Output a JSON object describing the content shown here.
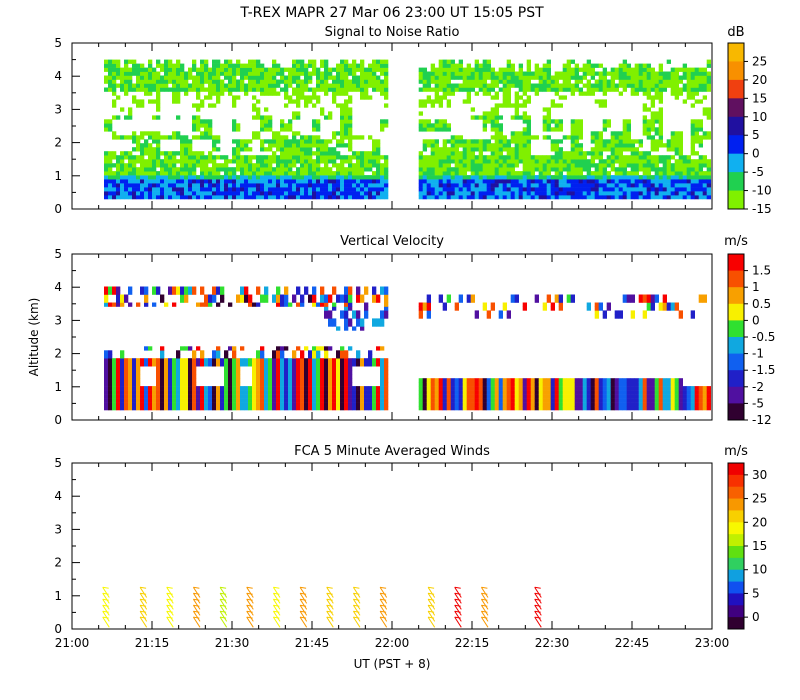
{
  "title_line": "T-REX   MAPR 27 Mar 06   23:00 UT   15:05   PST",
  "y_axis_label": "Altitude (km)",
  "x_axis_label": "UT  (PST + 8)",
  "chart_data": [
    {
      "type": "heatmap",
      "title": "Signal to Noise Ratio",
      "ylabel": "Altitude (km)",
      "ylim": [
        0,
        5
      ],
      "yticks": [
        "0",
        "1",
        "2",
        "3",
        "4",
        "5"
      ],
      "xlabel": "UT  (PST + 8)",
      "xticks": [
        "21:00",
        "21:15",
        "21:30",
        "21:45",
        "22:00",
        "22:15",
        "22:30",
        "22:45",
        "23:00"
      ],
      "colorbar": {
        "unit": "dB",
        "labels": [
          "25",
          "20",
          "15",
          "10",
          "5",
          "0",
          "-5",
          "-10",
          "-15"
        ],
        "colors": [
          "#f8b800",
          "#f89000",
          "#f04010",
          "#601060",
          "#2010a0",
          "#0020f0",
          "#10b0f0",
          "#20d050",
          "#80f000"
        ]
      },
      "segments": [
        {
          "x_start": "21:06",
          "x_end": "21:59"
        },
        {
          "x_start": "22:05",
          "x_end": "22:59"
        }
      ],
      "profile_summary": [
        {
          "alt_range_km": [
            0.3,
            0.8
          ],
          "typical_db": -2
        },
        {
          "alt_range_km": [
            0.8,
            2.0
          ],
          "typical_db": -10
        },
        {
          "alt_range_km": [
            2.0,
            3.5
          ],
          "typical_db": -12
        },
        {
          "alt_range_km": [
            3.5,
            4.3
          ],
          "typical_db": -13
        }
      ]
    },
    {
      "type": "heatmap",
      "title": "Vertical Velocity",
      "ylabel": "Altitude (km)",
      "ylim": [
        0,
        5
      ],
      "yticks": [
        "0",
        "1",
        "2",
        "3",
        "4",
        "5"
      ],
      "xlabel": "UT  (PST + 8)",
      "xticks": [
        "21:00",
        "21:15",
        "21:30",
        "21:45",
        "22:00",
        "22:15",
        "22:30",
        "22:45",
        "23:00"
      ],
      "colorbar": {
        "unit": "m/s",
        "labels": [
          "1.5",
          "1",
          "0.5",
          "0",
          "-0.5",
          "-1",
          "-1.5",
          "-2",
          "-5",
          "-12"
        ],
        "colors": [
          "#f80000",
          "#f85000",
          "#f8a000",
          "#f8f000",
          "#30e030",
          "#10a8e0",
          "#1060f0",
          "#2020c8",
          "#5010a0",
          "#300030"
        ]
      },
      "segments": [
        {
          "x_start": "21:06",
          "x_end": "21:59"
        },
        {
          "x_start": "22:05",
          "x_end": "22:59"
        }
      ]
    },
    {
      "type": "scatter",
      "title": "FCA 5 Minute Averaged Winds",
      "ylabel": "Altitude (km)",
      "ylim": [
        0,
        5
      ],
      "yticks": [
        "0",
        "1",
        "2",
        "3",
        "4",
        "5"
      ],
      "xlabel": "UT  (PST + 8)",
      "xticks": [
        "21:00",
        "21:15",
        "21:30",
        "21:45",
        "22:00",
        "22:15",
        "22:30",
        "22:45",
        "23:00"
      ],
      "colorbar": {
        "unit": "m/s",
        "labels": [
          "30",
          "25",
          "20",
          "15",
          "10",
          "5",
          "0"
        ],
        "colors": [
          "#f00000",
          "#f83000",
          "#f86000",
          "#f89800",
          "#f8d000",
          "#f8f800",
          "#c0f000",
          "#60e010",
          "#30d060",
          "#10a0e0",
          "#1050f0",
          "#2010c0",
          "#400080",
          "#300030"
        ]
      },
      "wind_profiles": [
        {
          "time": "21:07",
          "speed_ms": 18
        },
        {
          "time": "21:14",
          "speed_ms": 20
        },
        {
          "time": "21:19",
          "speed_ms": 19
        },
        {
          "time": "21:24",
          "speed_ms": 22
        },
        {
          "time": "21:29",
          "speed_ms": 17
        },
        {
          "time": "21:34",
          "speed_ms": 24
        },
        {
          "time": "21:39",
          "speed_ms": 19
        },
        {
          "time": "21:44",
          "speed_ms": 23
        },
        {
          "time": "21:49",
          "speed_ms": 21
        },
        {
          "time": "21:54",
          "speed_ms": 20
        },
        {
          "time": "21:59",
          "speed_ms": 22
        },
        {
          "time": "22:08",
          "speed_ms": 21
        },
        {
          "time": "22:13",
          "speed_ms": 29
        },
        {
          "time": "22:18",
          "speed_ms": 24
        },
        {
          "time": "22:28",
          "speed_ms": 30
        }
      ]
    }
  ]
}
